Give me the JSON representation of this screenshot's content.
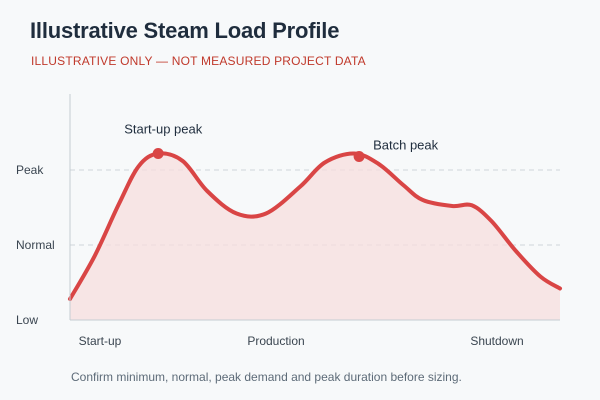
{
  "header": {
    "title": "Illustrative Steam Load Profile",
    "subtitle": "ILLUSTRATIVE ONLY — NOT MEASURED PROJECT DATA"
  },
  "footnote": "Confirm minimum, normal, peak demand and peak duration before sizing.",
  "colors": {
    "line": "#d94545",
    "fill": "#f7dede",
    "grid": "#cfd5da",
    "axis": "#c6cdd3"
  },
  "chart_data": {
    "type": "area",
    "title": "Illustrative Steam Load Profile",
    "x_categories": [
      "Start-up",
      "Production",
      "Shutdown"
    ],
    "y_categories": [
      "Low",
      "Normal",
      "Peak"
    ],
    "xlim": [
      0,
      1
    ],
    "ylim": [
      0,
      2.2
    ],
    "grid": "horizontal dashed at Normal and Peak",
    "series": [
      {
        "x": [
          0.0,
          0.05,
          0.1,
          0.14,
          0.18,
          0.23,
          0.28,
          0.34,
          0.4,
          0.47,
          0.52,
          0.58,
          0.63,
          0.68,
          0.72,
          0.78,
          0.82,
          0.86,
          0.91,
          0.96,
          1.0
        ],
        "y": [
          0.28,
          0.85,
          1.55,
          2.05,
          2.22,
          2.12,
          1.72,
          1.42,
          1.42,
          1.78,
          2.1,
          2.22,
          2.08,
          1.8,
          1.6,
          1.52,
          1.53,
          1.32,
          0.92,
          0.58,
          0.42
        ]
      }
    ],
    "markers": [
      {
        "label": "Start-up peak",
        "x": 0.18,
        "y": 2.22
      },
      {
        "label": "Batch peak",
        "x": 0.59,
        "y": 2.18
      }
    ]
  }
}
